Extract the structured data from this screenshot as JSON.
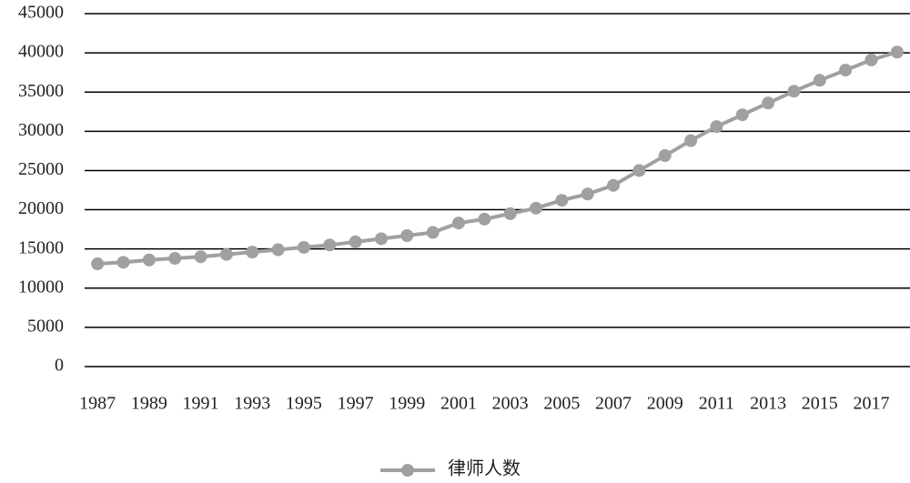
{
  "chart_data": {
    "type": "line",
    "categories": [
      "1987",
      null,
      "1989",
      null,
      "1991",
      null,
      "1993",
      null,
      "1995",
      null,
      "1997",
      null,
      "1999",
      null,
      "2001",
      null,
      "2003",
      null,
      "2005",
      null,
      "2007",
      null,
      "2009",
      null,
      "2011",
      null,
      "2013",
      null,
      "2015",
      null,
      "2017",
      null
    ],
    "series": [
      {
        "name": "律师人数",
        "color": "#a0a0a0",
        "values": [
          13100,
          13300,
          13600,
          13800,
          14000,
          14300,
          14600,
          14900,
          15200,
          15500,
          15900,
          16300,
          16700,
          17100,
          18300,
          18800,
          19500,
          20200,
          21200,
          22000,
          23100,
          25000,
          26900,
          28800,
          30600,
          32100,
          33600,
          35100,
          36500,
          37800,
          39100,
          40100
        ]
      }
    ],
    "ylim": [
      0,
      45000
    ],
    "yticks": [
      0,
      5000,
      10000,
      15000,
      20000,
      25000,
      30000,
      35000,
      40000,
      45000
    ],
    "grid": true,
    "legend": "bottom"
  }
}
